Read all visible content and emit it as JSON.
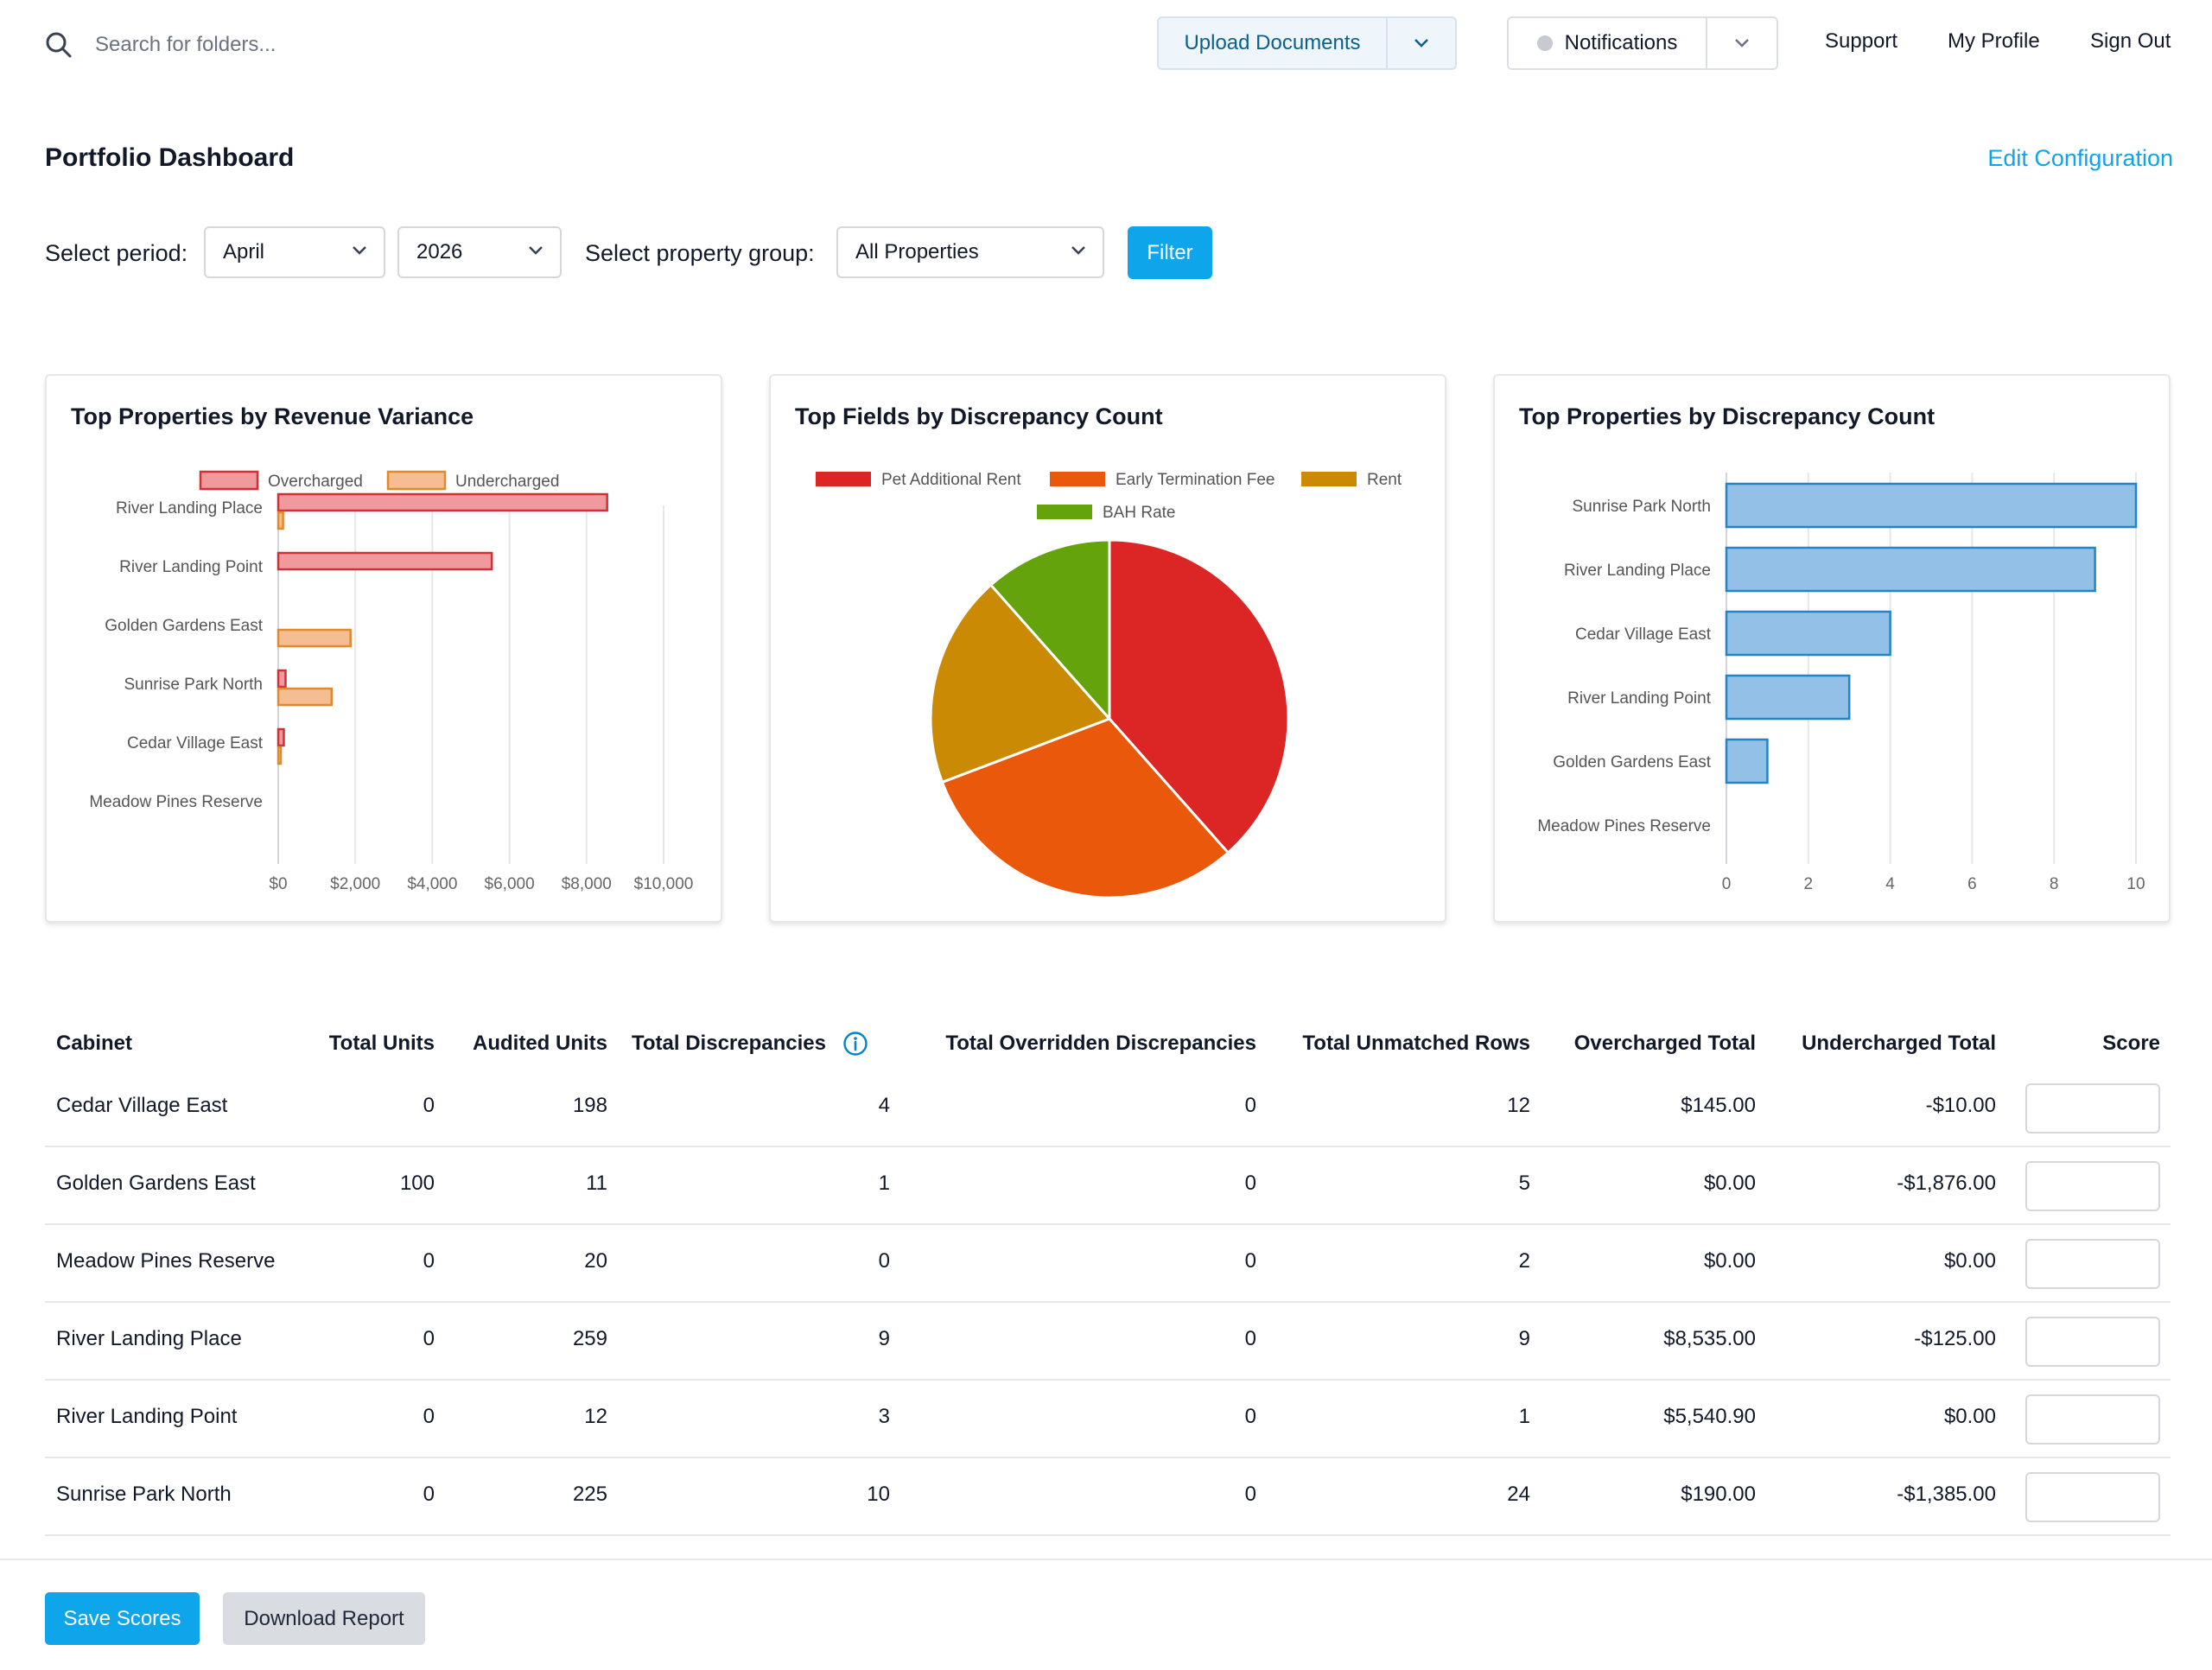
{
  "topbar": {
    "search_placeholder": "Search for folders...",
    "upload_label": "Upload Documents",
    "notifications_label": "Notifications",
    "nav_links": [
      "Support",
      "My Profile",
      "Sign Out"
    ]
  },
  "header": {
    "title": "Portfolio Dashboard",
    "edit_link": "Edit Configuration"
  },
  "filters": {
    "period_label": "Select period:",
    "month": "April",
    "year": "2026",
    "group_label": "Select property group:",
    "group": "All Properties",
    "filter_button": "Filter"
  },
  "colors": {
    "accent": "#0ea5ea",
    "overcharged_fill": "#f19a9d",
    "overcharged_stroke": "#d62e35",
    "undercharged_fill": "#f5be92",
    "undercharged_stroke": "#e0892d",
    "bar_fill": "#93c0e6",
    "bar_stroke": "#2384c8"
  },
  "chart_data": [
    {
      "type": "bar",
      "orientation": "horizontal",
      "title": "Top Properties by Revenue Variance",
      "categories": [
        "River Landing Place",
        "River Landing Point",
        "Golden Gardens East",
        "Sunrise Park North",
        "Cedar Village East",
        "Meadow Pines Reserve"
      ],
      "series": [
        {
          "name": "Overcharged",
          "values": [
            8535,
            5541,
            0,
            190,
            145,
            0
          ]
        },
        {
          "name": "Undercharged",
          "values": [
            125,
            0,
            1876,
            1385,
            10,
            0
          ]
        }
      ],
      "xticks": [
        "$0",
        "$2,000",
        "$4,000",
        "$6,000",
        "$8,000",
        "$10,000"
      ],
      "xlim": [
        0,
        10000
      ],
      "grid": true,
      "legend": "top"
    },
    {
      "type": "pie",
      "title": "Top Fields by Discrepancy Count",
      "labels": [
        "Pet Additional Rent",
        "Early Termination Fee",
        "Rent",
        "BAH Rate"
      ],
      "values": [
        10,
        8,
        5,
        3
      ],
      "colors": [
        "#dc2626",
        "#ea580c",
        "#ca8a04",
        "#65a30d"
      ],
      "legend": "top"
    },
    {
      "type": "bar",
      "orientation": "horizontal",
      "title": "Top Properties by Discrepancy Count",
      "categories": [
        "Sunrise Park North",
        "River Landing Place",
        "Cedar Village East",
        "River Landing Point",
        "Golden Gardens East",
        "Meadow Pines Reserve"
      ],
      "values": [
        10,
        9,
        4,
        3,
        1,
        0
      ],
      "xticks": [
        "0",
        "2",
        "4",
        "6",
        "8",
        "10"
      ],
      "xlim": [
        0,
        10
      ],
      "grid": true
    }
  ],
  "table": {
    "headers": [
      "Cabinet",
      "Total Units",
      "Audited Units",
      "Total Discrepancies",
      "Total Overridden Discrepancies",
      "Total Unmatched Rows",
      "Overcharged Total",
      "Undercharged Total",
      "Score"
    ],
    "rows": [
      [
        "Cedar Village East",
        "0",
        "198",
        "4",
        "0",
        "12",
        "$145.00",
        "-$10.00"
      ],
      [
        "Golden Gardens East",
        "100",
        "11",
        "1",
        "0",
        "5",
        "$0.00",
        "-$1,876.00"
      ],
      [
        "Meadow Pines Reserve",
        "0",
        "20",
        "0",
        "0",
        "2",
        "$0.00",
        "$0.00"
      ],
      [
        "River Landing Place",
        "0",
        "259",
        "9",
        "0",
        "9",
        "$8,535.00",
        "-$125.00"
      ],
      [
        "River Landing Point",
        "0",
        "12",
        "3",
        "0",
        "1",
        "$5,540.90",
        "$0.00"
      ],
      [
        "Sunrise Park North",
        "0",
        "225",
        "10",
        "0",
        "24",
        "$190.00",
        "-$1,385.00"
      ]
    ]
  },
  "footer": {
    "save_label": "Save Scores",
    "download_label": "Download Report"
  }
}
